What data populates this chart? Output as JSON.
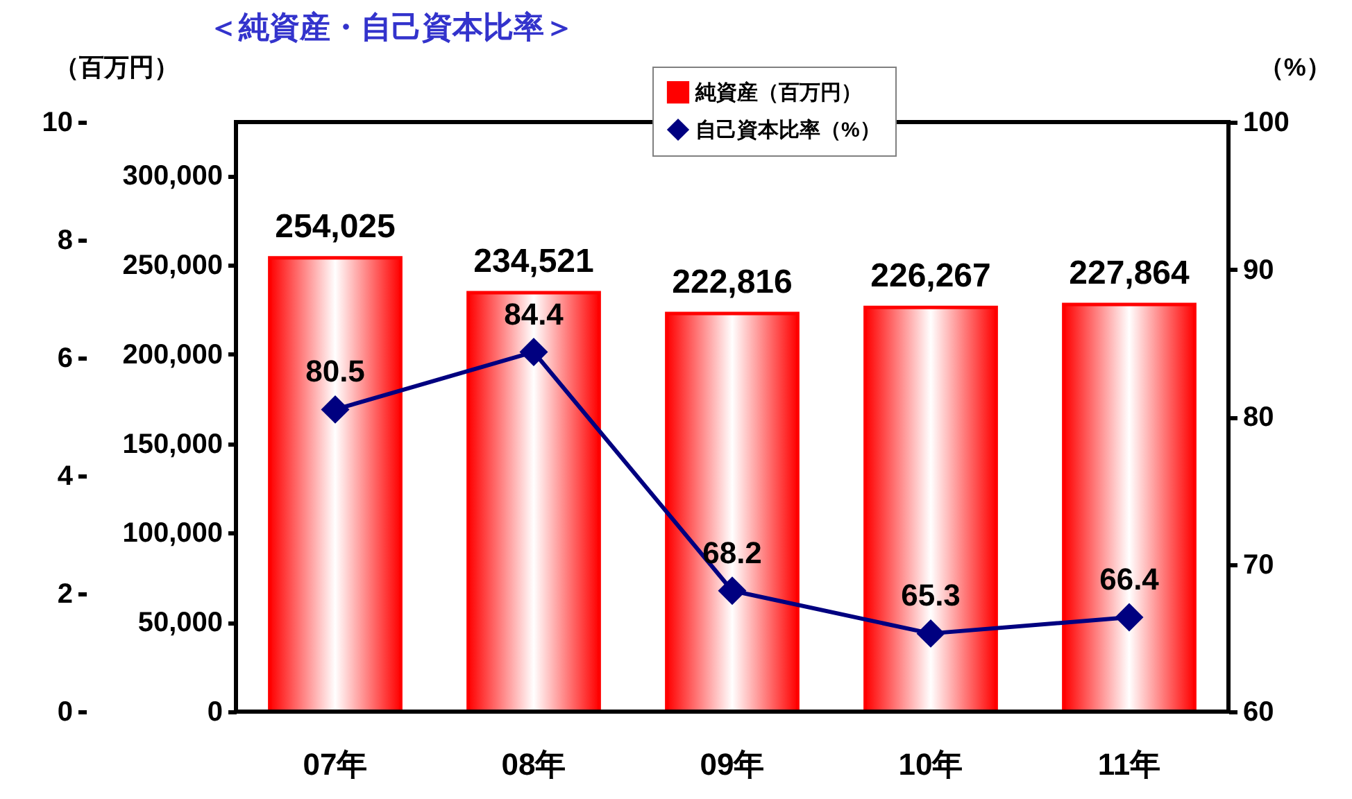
{
  "chart_data": {
    "type": "bar",
    "title": "＜純資産・自己資本比率＞",
    "categories": [
      "07年",
      "08年",
      "09年",
      "10年",
      "11年"
    ],
    "ylabel": "（百万円）",
    "y2label": "（%）",
    "ylim": [
      0,
      330000
    ],
    "yticks": [
      {
        "value": 0,
        "label": "0"
      },
      {
        "value": 50000,
        "label": "50,000"
      },
      {
        "value": 100000,
        "label": "100,000"
      },
      {
        "value": 150000,
        "label": "150,000"
      },
      {
        "value": 200000,
        "label": "200,000"
      },
      {
        "value": 250000,
        "label": "250,000"
      },
      {
        "value": 300000,
        "label": "300,000"
      }
    ],
    "y2lim": [
      60,
      100
    ],
    "y2ticks": [
      60,
      70,
      80,
      90,
      100
    ],
    "y3lim": [
      0,
      10
    ],
    "y3ticks": [
      0,
      2,
      4,
      6,
      8,
      10
    ],
    "series": [
      {
        "name": "純資産（百万円）",
        "color": "#ff0000",
        "values": [
          254025,
          234521,
          222816,
          226267,
          227864
        ],
        "value_labels": [
          "254,025",
          "234,521",
          "222,816",
          "226,267",
          "227,864"
        ]
      },
      {
        "name": "自己資本比率（%）",
        "type": "line",
        "axis": "y2",
        "color": "#000080",
        "marker": "diamond",
        "values": [
          80.5,
          84.4,
          68.2,
          65.3,
          66.4
        ],
        "value_labels": [
          "80.5",
          "84.4",
          "68.2",
          "65.3",
          "66.4"
        ]
      }
    ],
    "legend": "top",
    "grid": false
  }
}
